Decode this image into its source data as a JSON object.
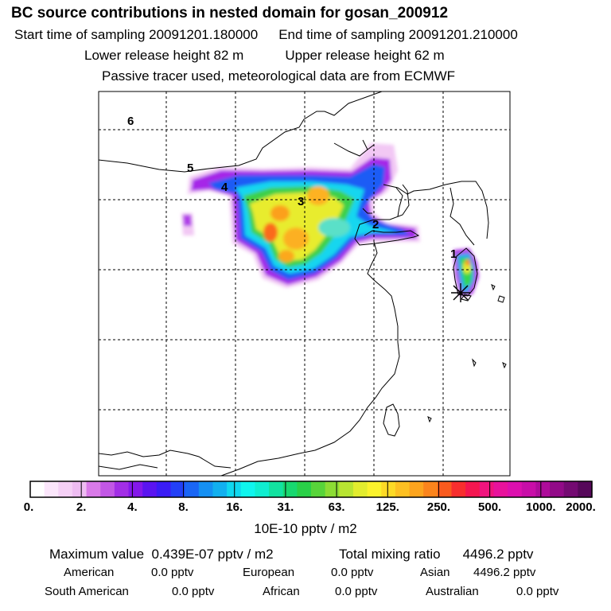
{
  "header": {
    "title": "BC  source contributions in nested domain for gosan_200912",
    "start_label": "Start time of sampling 20091201.180000",
    "end_label": "End time of sampling 20091201.210000",
    "lower_label": "Lower release height   82 m",
    "upper_label": "Upper release height   62 m",
    "tracer_note": "Passive tracer used, meteorological data are from ECMWF"
  },
  "map": {
    "trajectory_markers": [
      "6",
      "5",
      "4",
      "3",
      "2",
      "1"
    ],
    "receptor_marker": "gosan-star"
  },
  "colorbar": {
    "colors": [
      "#ffffff",
      "#fbe6fb",
      "#f5d0f6",
      "#eebcf2",
      "#d97ae8",
      "#c257e6",
      "#a22ee6",
      "#8418ea",
      "#5a14f0",
      "#3a1cf5",
      "#2340f7",
      "#1a66f5",
      "#1590f2",
      "#12b0ef",
      "#10d8ef",
      "#10f5ee",
      "#10eed0",
      "#12e2a0",
      "#18d870",
      "#2ad048",
      "#58d43a",
      "#8cdc34",
      "#b8e432",
      "#e2ec2e",
      "#fbf22c",
      "#fdda26",
      "#fdc022",
      "#fca41e",
      "#fb841c",
      "#fa5a1e",
      "#f82e2e",
      "#f41650",
      "#f0147e",
      "#e8129c",
      "#dc10ae",
      "#c80ea8",
      "#ae0c9a",
      "#920a88",
      "#740a72",
      "#56085a"
    ],
    "ticks": [
      "0.",
      "2.",
      "4.",
      "8.",
      "16.",
      "31.",
      "63.",
      "125.",
      "250.",
      "500.",
      "1000.",
      "2000."
    ],
    "unit": "10E-10 pptv / m2"
  },
  "stats": {
    "max_label": "Maximum value",
    "max_value": "0.439E-07 pptv / m2",
    "total_label": "Total mixing ratio",
    "total_value": "4496.2 pptv",
    "regions": [
      {
        "name": "American",
        "value": "0.0 pptv"
      },
      {
        "name": "European",
        "value": "0.0 pptv"
      },
      {
        "name": "Asian",
        "value": "4496.2 pptv"
      },
      {
        "name": "South American",
        "value": "0.0 pptv"
      },
      {
        "name": "African",
        "value": "0.0 pptv"
      },
      {
        "name": "Australian",
        "value": "0.0 pptv"
      }
    ]
  }
}
